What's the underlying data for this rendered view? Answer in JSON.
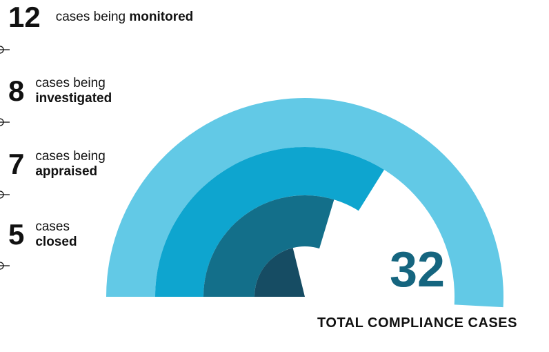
{
  "chart_data": {
    "type": "radial-bar",
    "total": "32",
    "total_caption": "TOTAL COMPLIANCE CASES",
    "series": [
      {
        "value": 12,
        "count": "12",
        "text_plain": "cases being",
        "text_bold": "monitored",
        "color": "#62c9e6"
      },
      {
        "value": 8,
        "count": "8",
        "text_plain": "cases being",
        "text_bold": "investigated",
        "color": "#0ea5cf"
      },
      {
        "value": 7,
        "count": "7",
        "text_plain": "cases being",
        "text_bold": "appraised",
        "color": "#136f8a"
      },
      {
        "value": 5,
        "count": "5",
        "text_plain": "cases",
        "text_bold": "closed",
        "color": "#164c63"
      }
    ]
  }
}
